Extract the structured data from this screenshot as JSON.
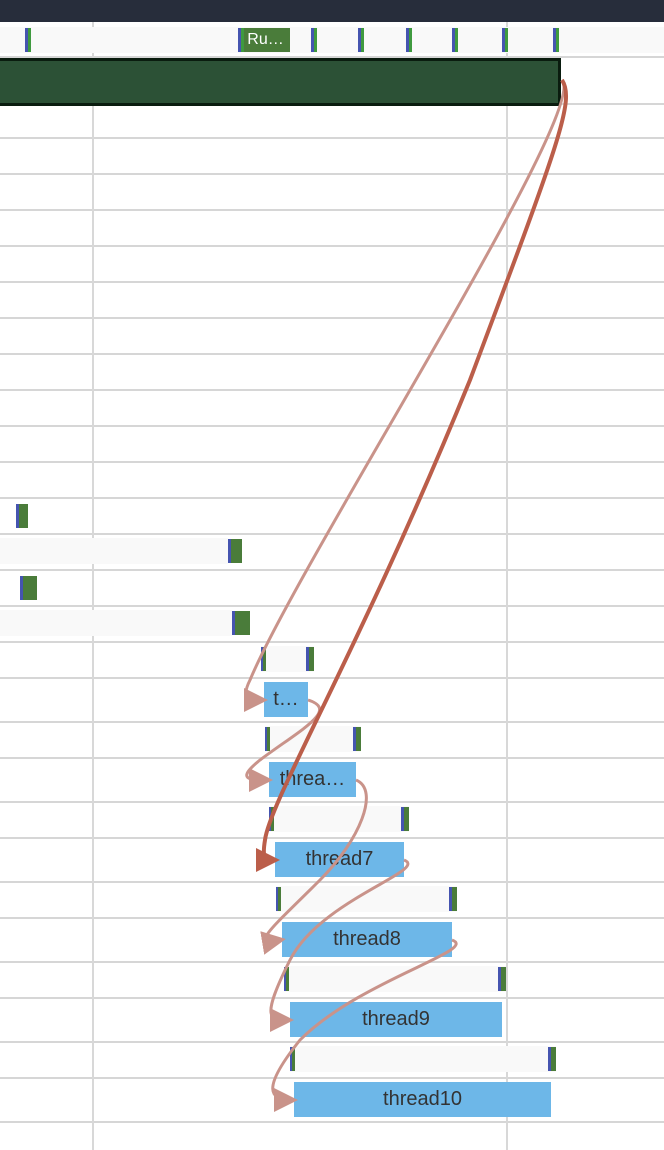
{
  "state_track": {
    "running_label": "Ru…"
  },
  "slices": [
    {
      "label": "t…"
    },
    {
      "label": "threa…"
    },
    {
      "label": "thread7"
    },
    {
      "label": "thread8"
    },
    {
      "label": "thread9"
    },
    {
      "label": "thread10"
    }
  ],
  "colors": {
    "slice": "#6db7e8",
    "running": "#4a7c3a",
    "selected_slice": "#2c5136",
    "flow": "#c9938a",
    "flow_selected": "#bb5e4a",
    "header": "#272d3b"
  }
}
